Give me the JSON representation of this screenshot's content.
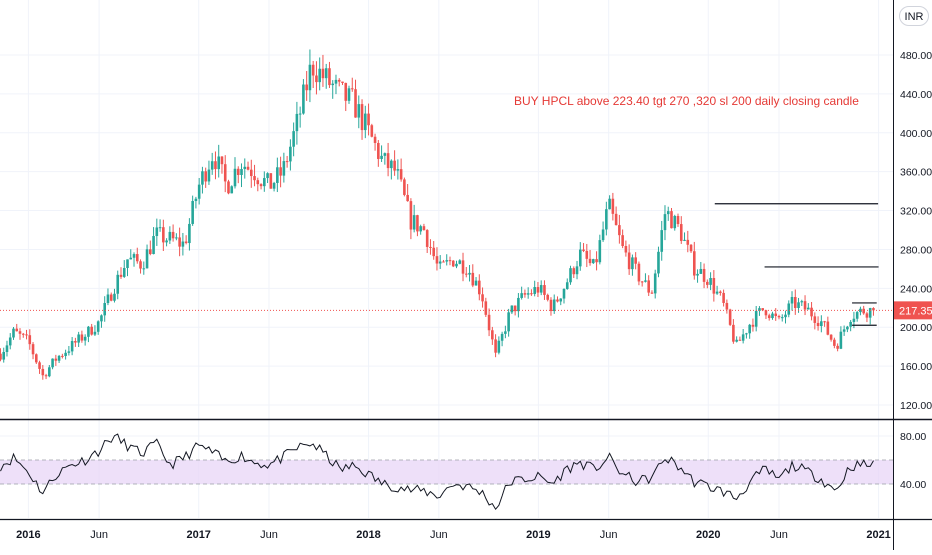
{
  "currency": "INR",
  "last_price_label": "217.35",
  "annotation": "BUY HPCL above 223.40 tgt 270 ,320 sl 200 daily closing candle",
  "colors": {
    "up": "#26a69a",
    "down": "#ef5350",
    "rsi_line": "#131722",
    "rsi_band": "#e8d5f7",
    "annotation": "#e53935",
    "price_tag": "#ef5350",
    "drawing": "#131722"
  },
  "chart_data": [
    {
      "type": "candlestick",
      "title": "",
      "symbol": "HPCL",
      "currency": "INR",
      "ylim": [
        110,
        500
      ],
      "y_ticks": [
        "480.00",
        "440.00",
        "400.00",
        "360.00",
        "320.00",
        "280.00",
        "240.00",
        "200.00",
        "160.00",
        "120.00"
      ],
      "y_tick_values": [
        480,
        440,
        400,
        360,
        320,
        280,
        240,
        200,
        160,
        120
      ],
      "x_ticks": [
        "2016",
        "Jun",
        "2017",
        "Jun",
        "2018",
        "Jun",
        "2019",
        "Jun",
        "2020",
        "Jun",
        "2021"
      ],
      "x_tick_dates": [
        "2016-01-01",
        "2016-06-01",
        "2017-01-01",
        "2017-06-01",
        "2018-01-01",
        "2018-06-01",
        "2019-01-01",
        "2019-06-01",
        "2020-01-01",
        "2020-06-01",
        "2021-01-01"
      ],
      "x_range": [
        "2015-11-01",
        "2021-02-01"
      ],
      "last_price": 217.35,
      "close_path": [
        {
          "date": "2015-11-01",
          "close": 172
        },
        {
          "date": "2015-12-01",
          "close": 195
        },
        {
          "date": "2016-01-01",
          "close": 185
        },
        {
          "date": "2016-02-01",
          "close": 150
        },
        {
          "date": "2016-03-01",
          "close": 168
        },
        {
          "date": "2016-04-01",
          "close": 180
        },
        {
          "date": "2016-05-01",
          "close": 192
        },
        {
          "date": "2016-06-01",
          "close": 205
        },
        {
          "date": "2016-07-01",
          "close": 240
        },
        {
          "date": "2016-08-01",
          "close": 270
        },
        {
          "date": "2016-09-01",
          "close": 265
        },
        {
          "date": "2016-10-01",
          "close": 295
        },
        {
          "date": "2016-11-01",
          "close": 290
        },
        {
          "date": "2016-12-01",
          "close": 285
        },
        {
          "date": "2017-01-01",
          "close": 345
        },
        {
          "date": "2017-02-01",
          "close": 380
        },
        {
          "date": "2017-03-01",
          "close": 345
        },
        {
          "date": "2017-04-01",
          "close": 370
        },
        {
          "date": "2017-05-01",
          "close": 360
        },
        {
          "date": "2017-06-01",
          "close": 345
        },
        {
          "date": "2017-07-01",
          "close": 360
        },
        {
          "date": "2017-08-01",
          "close": 410
        },
        {
          "date": "2017-09-01",
          "close": 470
        },
        {
          "date": "2017-10-01",
          "close": 455
        },
        {
          "date": "2017-11-01",
          "close": 440
        },
        {
          "date": "2017-12-01",
          "close": 430
        },
        {
          "date": "2018-01-01",
          "close": 400
        },
        {
          "date": "2018-02-01",
          "close": 370
        },
        {
          "date": "2018-03-01",
          "close": 360
        },
        {
          "date": "2018-04-01",
          "close": 310
        },
        {
          "date": "2018-05-01",
          "close": 300
        },
        {
          "date": "2018-06-01",
          "close": 258
        },
        {
          "date": "2018-07-01",
          "close": 270
        },
        {
          "date": "2018-08-01",
          "close": 262
        },
        {
          "date": "2018-09-01",
          "close": 235
        },
        {
          "date": "2018-10-01",
          "close": 170
        },
        {
          "date": "2018-11-01",
          "close": 215
        },
        {
          "date": "2018-12-01",
          "close": 232
        },
        {
          "date": "2019-01-01",
          "close": 240
        },
        {
          "date": "2019-02-01",
          "close": 220
        },
        {
          "date": "2019-03-01",
          "close": 245
        },
        {
          "date": "2019-04-01",
          "close": 275
        },
        {
          "date": "2019-05-01",
          "close": 260
        },
        {
          "date": "2019-06-01",
          "close": 325
        },
        {
          "date": "2019-07-01",
          "close": 280
        },
        {
          "date": "2019-08-01",
          "close": 255
        },
        {
          "date": "2019-09-01",
          "close": 235
        },
        {
          "date": "2019-10-01",
          "close": 320
        },
        {
          "date": "2019-11-01",
          "close": 300
        },
        {
          "date": "2019-12-01",
          "close": 262
        },
        {
          "date": "2020-01-01",
          "close": 250
        },
        {
          "date": "2020-02-01",
          "close": 225
        },
        {
          "date": "2020-03-01",
          "close": 180
        },
        {
          "date": "2020-04-01",
          "close": 205
        },
        {
          "date": "2020-05-01",
          "close": 220
        },
        {
          "date": "2020-06-01",
          "close": 205
        },
        {
          "date": "2020-07-01",
          "close": 225
        },
        {
          "date": "2020-08-01",
          "close": 218
        },
        {
          "date": "2020-09-01",
          "close": 205
        },
        {
          "date": "2020-10-01",
          "close": 180
        },
        {
          "date": "2020-11-01",
          "close": 212
        },
        {
          "date": "2020-12-01",
          "close": 217.35
        }
      ],
      "drawn_lines": [
        {
          "from_date": "2020-01-15",
          "to_date": "2020-12-31",
          "price": 327
        },
        {
          "from_date": "2020-05-01",
          "to_date": "2021-01-01",
          "price": 262
        },
        {
          "from_date": "2020-11-05",
          "to_date": "2020-12-28",
          "price": 225
        },
        {
          "from_date": "2020-11-05",
          "to_date": "2020-12-28",
          "price": 202
        }
      ]
    },
    {
      "type": "line",
      "title": "",
      "indicator": "RSI",
      "ylim": [
        16,
        90
      ],
      "y_ticks": [
        "80.00",
        "40.00"
      ],
      "y_tick_values": [
        80,
        40
      ],
      "band": [
        40,
        60
      ],
      "path": [
        {
          "date": "2015-11-01",
          "value": 55
        },
        {
          "date": "2015-12-01",
          "value": 62
        },
        {
          "date": "2016-01-01",
          "value": 50
        },
        {
          "date": "2016-02-01",
          "value": 33
        },
        {
          "date": "2016-03-01",
          "value": 48
        },
        {
          "date": "2016-04-01",
          "value": 56
        },
        {
          "date": "2016-05-01",
          "value": 60
        },
        {
          "date": "2016-06-01",
          "value": 68
        },
        {
          "date": "2016-07-01",
          "value": 80
        },
        {
          "date": "2016-08-01",
          "value": 72
        },
        {
          "date": "2016-09-01",
          "value": 65
        },
        {
          "date": "2016-10-01",
          "value": 74
        },
        {
          "date": "2016-11-01",
          "value": 56
        },
        {
          "date": "2016-12-01",
          "value": 62
        },
        {
          "date": "2017-01-01",
          "value": 72
        },
        {
          "date": "2017-02-01",
          "value": 66
        },
        {
          "date": "2017-03-01",
          "value": 58
        },
        {
          "date": "2017-04-01",
          "value": 64
        },
        {
          "date": "2017-05-01",
          "value": 58
        },
        {
          "date": "2017-06-01",
          "value": 56
        },
        {
          "date": "2017-07-01",
          "value": 62
        },
        {
          "date": "2017-08-01",
          "value": 70
        },
        {
          "date": "2017-09-01",
          "value": 74
        },
        {
          "date": "2017-10-01",
          "value": 64
        },
        {
          "date": "2017-11-01",
          "value": 52
        },
        {
          "date": "2017-12-01",
          "value": 55
        },
        {
          "date": "2018-01-01",
          "value": 48
        },
        {
          "date": "2018-02-01",
          "value": 40
        },
        {
          "date": "2018-03-01",
          "value": 38
        },
        {
          "date": "2018-04-01",
          "value": 35
        },
        {
          "date": "2018-05-01",
          "value": 34
        },
        {
          "date": "2018-06-01",
          "value": 30
        },
        {
          "date": "2018-07-01",
          "value": 40
        },
        {
          "date": "2018-08-01",
          "value": 38
        },
        {
          "date": "2018-09-01",
          "value": 33
        },
        {
          "date": "2018-10-01",
          "value": 20
        },
        {
          "date": "2018-11-01",
          "value": 42
        },
        {
          "date": "2018-12-01",
          "value": 44
        },
        {
          "date": "2019-01-01",
          "value": 46
        },
        {
          "date": "2019-02-01",
          "value": 40
        },
        {
          "date": "2019-03-01",
          "value": 52
        },
        {
          "date": "2019-04-01",
          "value": 58
        },
        {
          "date": "2019-05-01",
          "value": 52
        },
        {
          "date": "2019-06-01",
          "value": 62
        },
        {
          "date": "2019-07-01",
          "value": 48
        },
        {
          "date": "2019-08-01",
          "value": 42
        },
        {
          "date": "2019-09-01",
          "value": 45
        },
        {
          "date": "2019-10-01",
          "value": 62
        },
        {
          "date": "2019-11-01",
          "value": 54
        },
        {
          "date": "2019-12-01",
          "value": 42
        },
        {
          "date": "2020-01-01",
          "value": 38
        },
        {
          "date": "2020-02-01",
          "value": 34
        },
        {
          "date": "2020-03-01",
          "value": 28
        },
        {
          "date": "2020-04-01",
          "value": 42
        },
        {
          "date": "2020-05-01",
          "value": 52
        },
        {
          "date": "2020-06-01",
          "value": 44
        },
        {
          "date": "2020-07-01",
          "value": 56
        },
        {
          "date": "2020-08-01",
          "value": 50
        },
        {
          "date": "2020-09-01",
          "value": 44
        },
        {
          "date": "2020-10-01",
          "value": 34
        },
        {
          "date": "2020-11-01",
          "value": 55
        },
        {
          "date": "2020-12-01",
          "value": 56
        }
      ]
    }
  ]
}
